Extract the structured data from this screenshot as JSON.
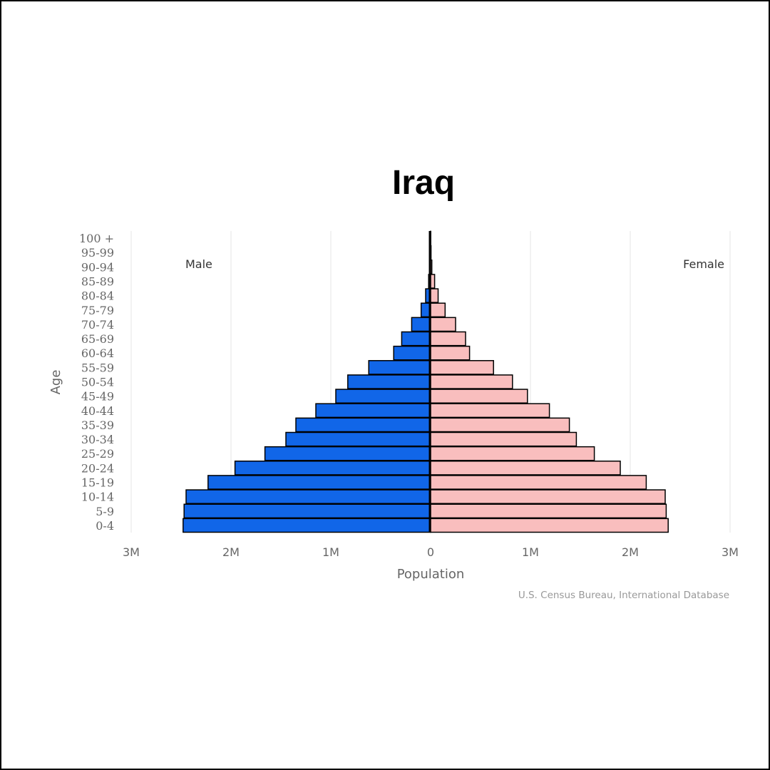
{
  "chart_data": {
    "type": "bar",
    "title": "Iraq",
    "xlabel": "Population",
    "ylabel": "Age",
    "credit": "U.S. Census Bureau, International Database",
    "xlim": [
      -3000000,
      3000000
    ],
    "x_ticks": [
      {
        "value": -3000000,
        "label": "3M"
      },
      {
        "value": -2000000,
        "label": "2M"
      },
      {
        "value": -1000000,
        "label": "1M"
      },
      {
        "value": 0,
        "label": "0"
      },
      {
        "value": 1000000,
        "label": "1M"
      },
      {
        "value": 2000000,
        "label": "2M"
      },
      {
        "value": 3000000,
        "label": "3M"
      }
    ],
    "grid": true,
    "categories": [
      "100 +",
      "95-99",
      "90-94",
      "85-89",
      "80-84",
      "75-79",
      "70-74",
      "65-69",
      "60-64",
      "55-59",
      "50-54",
      "45-49",
      "40-44",
      "35-39",
      "30-34",
      "25-29",
      "20-24",
      "15-19",
      "10-14",
      "5-9",
      "0-4"
    ],
    "series": [
      {
        "name": "Male",
        "color": "#1166e8",
        "values": [
          1000,
          3000,
          8000,
          20000,
          50000,
          95000,
          190000,
          290000,
          370000,
          620000,
          830000,
          950000,
          1150000,
          1350000,
          1450000,
          1660000,
          1960000,
          2230000,
          2450000,
          2470000,
          2480000
        ]
      },
      {
        "name": "Female",
        "color": "#f9bebe",
        "values": [
          1000,
          4000,
          12000,
          40000,
          75000,
          145000,
          250000,
          350000,
          390000,
          630000,
          820000,
          970000,
          1190000,
          1390000,
          1460000,
          1640000,
          1900000,
          2160000,
          2350000,
          2360000,
          2380000
        ]
      }
    ]
  }
}
